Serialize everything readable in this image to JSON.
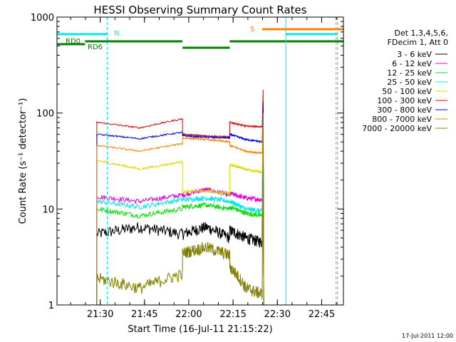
{
  "chart_data": {
    "type": "line",
    "title": "HESSI Observing Summary Count Rates",
    "xlabel": "Start Time (16-Jul-11 21:15:22)",
    "ylabel": "Count Rate (s⁻¹ detector⁻¹)",
    "yscale": "log",
    "ylim": [
      1,
      1000
    ],
    "xlim_minutes": [
      0,
      97
    ],
    "x_tick_labels": [
      "21:30",
      "21:45",
      "22:00",
      "22:15",
      "22:30",
      "22:45"
    ],
    "x_tick_minutes": [
      14.63,
      29.63,
      44.63,
      59.63,
      74.63,
      89.63
    ],
    "y_tick_labels": [
      "1",
      "10",
      "100",
      "1000"
    ],
    "y_tick_values": [
      1,
      10,
      100,
      1000
    ],
    "legend_header": [
      "Det 1,3,4,5,6,",
      "FDecim 1, Att 0"
    ],
    "legend_placement": "right",
    "series": [
      {
        "name": "3 - 6 keV",
        "color": "#000000",
        "seg1": [
          5.5,
          6.5,
          5.5
        ],
        "seg2": [
          5.5,
          6.5,
          5.0
        ],
        "seg3": [
          6.0,
          5.0,
          4.5
        ],
        "noise": 0.14
      },
      {
        "name": "6 - 12 keV",
        "color": "#e000e0",
        "seg1": [
          13.5,
          12.0,
          14.0
        ],
        "seg2": [
          14.0,
          16.0,
          14.0
        ],
        "seg3": [
          14.5,
          13.0,
          12.5
        ],
        "noise": 0.06
      },
      {
        "name": "12 - 25 keV",
        "color": "#00e000",
        "seg1": [
          10.0,
          8.5,
          10.0
        ],
        "seg2": [
          10.5,
          11.0,
          10.0
        ],
        "seg3": [
          10.5,
          9.0,
          8.5
        ],
        "noise": 0.06
      },
      {
        "name": "25 - 50 keV",
        "color": "#00e8e8",
        "seg1": [
          12.0,
          10.5,
          12.5
        ],
        "seg2": [
          12.5,
          13.0,
          12.0
        ],
        "seg3": [
          12.0,
          10.0,
          9.5
        ],
        "noise": 0.06
      },
      {
        "name": "50 - 100 keV",
        "color": "#d8d800",
        "seg1": [
          32.0,
          26.0,
          31.0
        ],
        "seg2": [
          15.0,
          15.5,
          14.5
        ],
        "seg3": [
          29.0,
          26.0,
          24.0
        ],
        "noise": 0.03
      },
      {
        "name": "100 - 300 keV",
        "color": "#e00000",
        "seg1": [
          80.0,
          70.0,
          87.0
        ],
        "seg2": [
          60.0,
          58.0,
          56.0
        ],
        "seg3": [
          80.0,
          73.0,
          72.0
        ],
        "noise": 0.02
      },
      {
        "name": "300 - 800 keV",
        "color": "#0000e0",
        "seg1": [
          60.0,
          54.0,
          63.0
        ],
        "seg2": [
          58.0,
          56.0,
          55.0
        ],
        "seg3": [
          60.0,
          53.0,
          50.0
        ],
        "noise": 0.02
      },
      {
        "name": "800 - 7000 keV",
        "color": "#ff8000",
        "seg1": [
          46.0,
          40.0,
          48.0
        ],
        "seg2": [
          55.0,
          53.0,
          50.0
        ],
        "seg3": [
          46.0,
          40.0,
          38.0
        ],
        "noise": 0.02
      },
      {
        "name": "7000 - 20000 keV",
        "color": "#808000",
        "seg1": [
          1.9,
          1.5,
          2.1
        ],
        "seg2": [
          3.5,
          4.0,
          3.3
        ],
        "seg3": [
          2.5,
          1.5,
          1.3
        ],
        "noise": 0.15
      }
    ],
    "segments_minutes": [
      [
        13.5,
        42.5
      ],
      [
        42.5,
        58.5
      ],
      [
        58.5,
        69.5
      ]
    ],
    "state_bars": [
      {
        "label": "RD0",
        "color": "#008000",
        "level": 1,
        "spans": [
          [
            0,
            9.5
          ]
        ]
      },
      {
        "label": "RD6",
        "color": "#008000",
        "level": 2,
        "spans": [
          [
            9.5,
            42.5
          ],
          [
            58.5,
            97
          ]
        ]
      },
      {
        "label": "",
        "color": "#008000",
        "level": 0,
        "spans": [
          [
            42.5,
            58.5
          ]
        ]
      },
      {
        "label": "N",
        "color": "#00e8e8",
        "level": 3,
        "spans": [
          [
            0,
            17.0
          ],
          [
            77.5,
            95
          ]
        ]
      },
      {
        "label": "S",
        "color": "#ff8000",
        "level": 4,
        "spans": [
          [
            69.5,
            97
          ]
        ]
      }
    ],
    "vertical_markers": [
      {
        "minute": 17.0,
        "color": "#00e8e8",
        "style": "dashed"
      },
      {
        "minute": 77.5,
        "color": "#00e8e8",
        "style": "solid"
      },
      {
        "minute": 94.5,
        "color": "#00e8e8",
        "style": "dashed"
      },
      {
        "minute": 95.0,
        "color": "#ff8000",
        "style": "dashed"
      }
    ],
    "footer_date": "17-Jul-2011 12:00"
  }
}
